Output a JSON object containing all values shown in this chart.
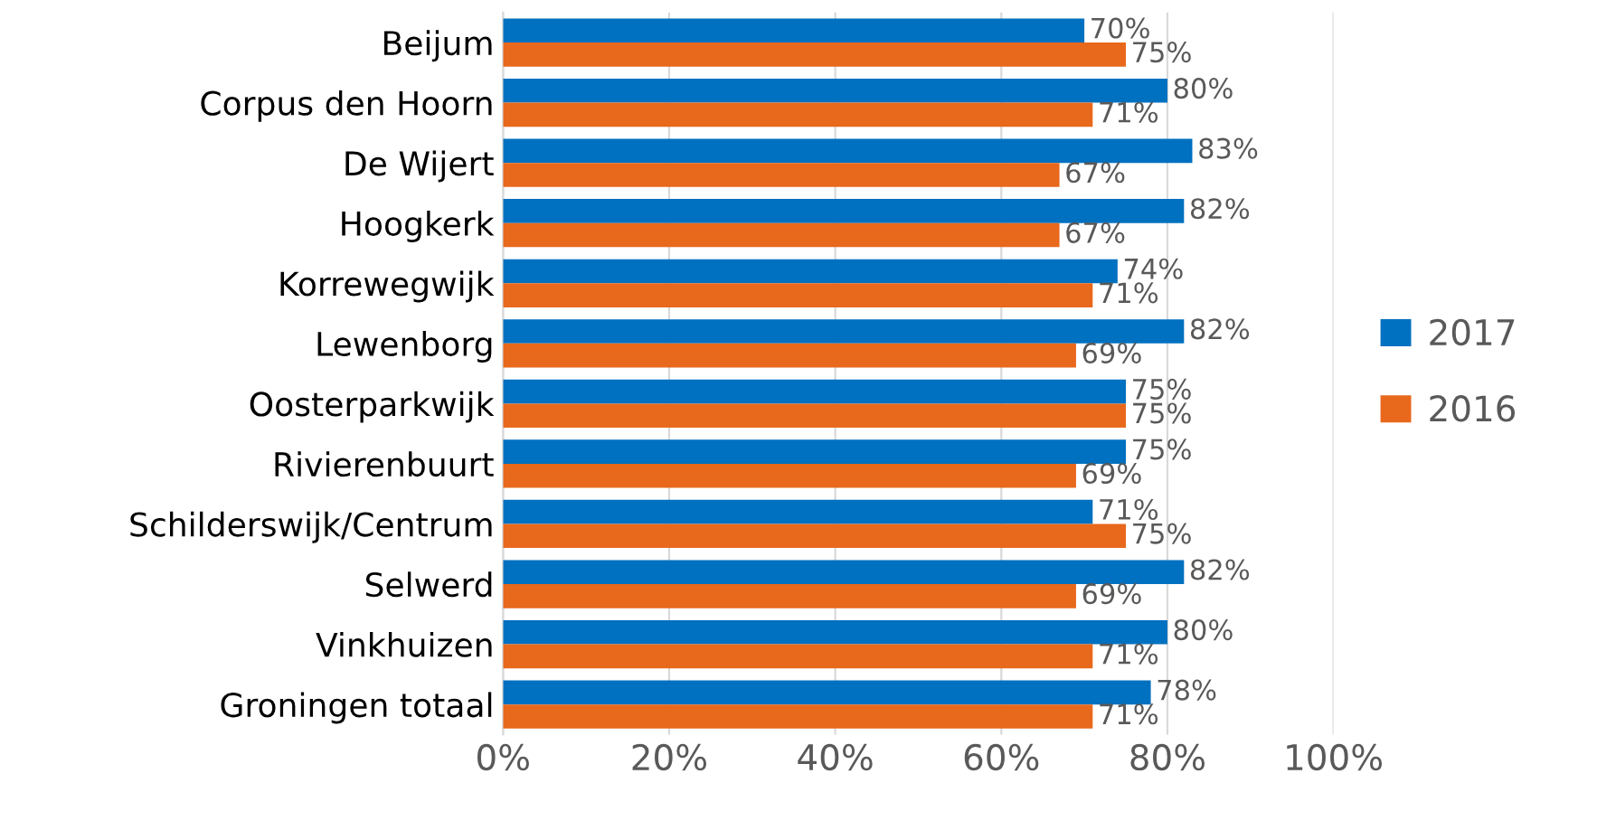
{
  "chart_data": {
    "type": "bar",
    "orientation": "horizontal",
    "categories": [
      "Beijum",
      "Corpus den Hoorn",
      "De Wijert",
      "Hoogkerk",
      "Korrewegwijk",
      "Lewenborg",
      "Oosterparkwijk",
      "Rivierenbuurt",
      "Schilderswijk/Centrum",
      "Selwerd",
      "Vinkhuizen",
      "Groningen totaal"
    ],
    "series": [
      {
        "name": "2017",
        "color": "#0070c0",
        "values": [
          70,
          80,
          83,
          82,
          74,
          82,
          75,
          75,
          71,
          82,
          80,
          78
        ],
        "value_labels": [
          "70%",
          "80%",
          "83%",
          "82%",
          "74%",
          "82%",
          "75%",
          "75%",
          "71%",
          "82%",
          "80%",
          "78%"
        ]
      },
      {
        "name": "2016",
        "color": "#e8681c",
        "values": [
          75,
          71,
          67,
          67,
          71,
          69,
          75,
          69,
          75,
          69,
          71,
          71
        ],
        "value_labels": [
          "75%",
          "71%",
          "67%",
          "67%",
          "71%",
          "69%",
          "75%",
          "69%",
          "75%",
          "69%",
          "71%",
          "71%"
        ]
      }
    ],
    "xlim": [
      0,
      100
    ],
    "xticks": [
      {
        "value": 0,
        "label": "0%"
      },
      {
        "value": 20,
        "label": "20%"
      },
      {
        "value": 40,
        "label": "40%"
      },
      {
        "value": 60,
        "label": "60%"
      },
      {
        "value": 80,
        "label": "80%"
      },
      {
        "value": 100,
        "label": "100%"
      }
    ],
    "grid": "x",
    "legend": "right"
  }
}
